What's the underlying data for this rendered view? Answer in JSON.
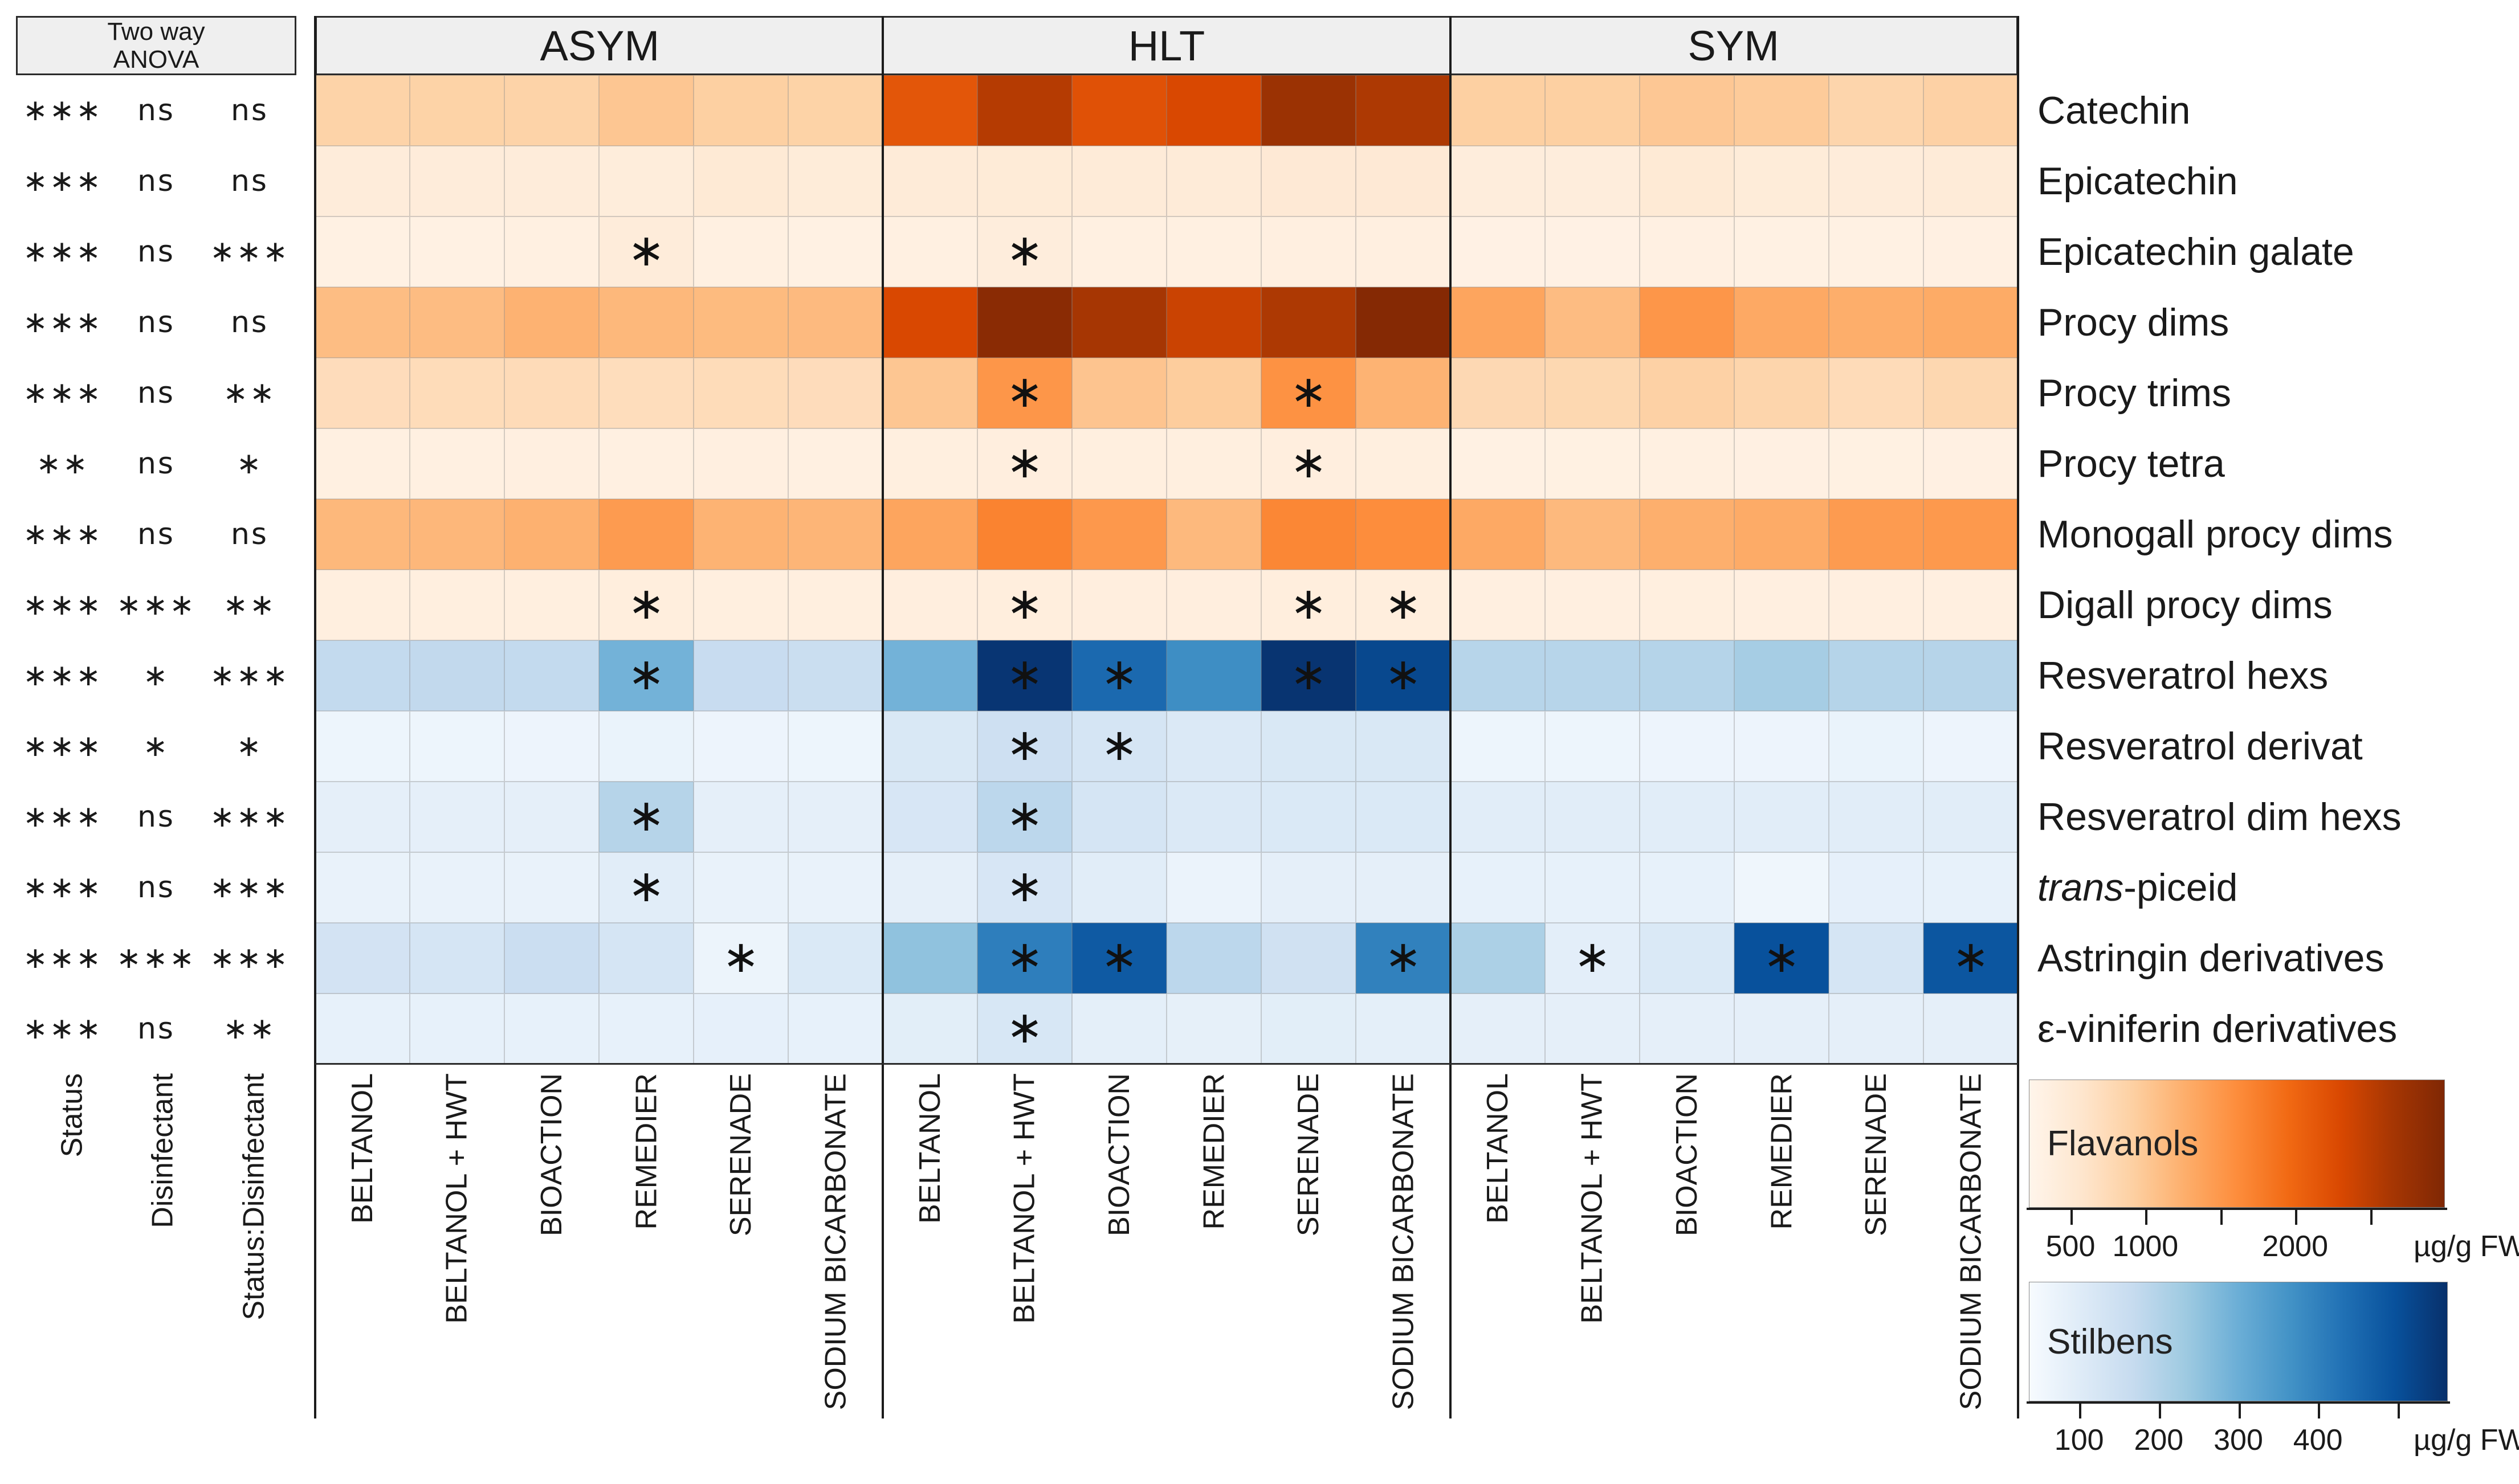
{
  "figure": {
    "anova_header_line1": "Two way",
    "anova_header_line2": "ANOVA",
    "sig_marker": "∗"
  },
  "chart_data": {
    "type": "heatmap",
    "unit": "µg/g FW",
    "groups": [
      "ASYM",
      "HLT",
      "SYM"
    ],
    "treatments": [
      "BELTANOL",
      "BELTANOL + HWT",
      "BIOACTION",
      "REMEDIER",
      "SERENADE",
      "SODIUM BICARBONATE"
    ],
    "anova_factors": [
      "Status",
      "Disinfectant",
      "Status:Disinfectant"
    ],
    "legends": [
      {
        "name": "Flavanols",
        "unit": "µg/g FW",
        "domain": [
          0,
          2800
        ],
        "ticks": [
          500,
          1000,
          1500,
          2000,
          2500
        ],
        "tick_labels": [
          "500",
          "1000",
          "",
          "2000",
          ""
        ],
        "colors": [
          "#fff5eb",
          "#fee6ce",
          "#fdd0a2",
          "#fdae6b",
          "#fd8d3c",
          "#f16913",
          "#d94801",
          "#a63603",
          "#7f2704"
        ]
      },
      {
        "name": "Stilbens",
        "unit": "µg/g FW",
        "domain": [
          0,
          500
        ],
        "ticks": [
          100,
          200,
          300,
          400,
          500
        ],
        "tick_labels": [
          "100",
          "200",
          "300",
          "400",
          ""
        ],
        "colors": [
          "#f7fbff",
          "#deebf7",
          "#c6dbef",
          "#9ecae1",
          "#6baed6",
          "#4292c6",
          "#2171b5",
          "#08519c",
          "#08306b"
        ]
      }
    ],
    "rows": [
      {
        "label": "Catechin",
        "class": "flavanol",
        "anova": [
          "***",
          "ns",
          "ns"
        ],
        "values": {
          "ASYM": [
            650,
            660,
            650,
            800,
            700,
            660
          ],
          "HLT": [
            1950,
            2350,
            2000,
            2100,
            2550,
            2400
          ],
          "SYM": [
            700,
            700,
            790,
            750,
            620,
            680
          ]
        },
        "sig": {
          "ASYM": [
            0,
            0,
            0,
            0,
            0,
            0
          ],
          "HLT": [
            0,
            0,
            0,
            0,
            0,
            0
          ],
          "SYM": [
            0,
            0,
            0,
            0,
            0,
            0
          ]
        }
      },
      {
        "label": "Epicatechin",
        "class": "flavanol",
        "anova": [
          "***",
          "ns",
          "ns"
        ],
        "values": {
          "ASYM": [
            200,
            200,
            205,
            190,
            260,
            215
          ],
          "HLT": [
            235,
            245,
            235,
            235,
            270,
            270
          ],
          "SYM": [
            185,
            185,
            260,
            215,
            200,
            225
          ]
        },
        "sig": {
          "ASYM": [
            0,
            0,
            0,
            0,
            0,
            0
          ],
          "HLT": [
            0,
            0,
            0,
            0,
            0,
            0
          ],
          "SYM": [
            0,
            0,
            0,
            0,
            0,
            0
          ]
        }
      },
      {
        "label": "Epicatechin galate",
        "class": "flavanol",
        "anova": [
          "***",
          "ns",
          "***"
        ],
        "values": {
          "ASYM": [
            100,
            100,
            115,
            205,
            115,
            100
          ],
          "HLT": [
            125,
            185,
            125,
            125,
            135,
            135
          ],
          "SYM": [
            90,
            90,
            110,
            100,
            100,
            110
          ]
        },
        "sig": {
          "ASYM": [
            0,
            0,
            0,
            1,
            0,
            0
          ],
          "HLT": [
            0,
            1,
            0,
            0,
            0,
            0
          ],
          "SYM": [
            0,
            0,
            0,
            0,
            0,
            0
          ]
        }
      },
      {
        "label": "Procy dims",
        "class": "flavanol",
        "anova": [
          "***",
          "ns",
          "ns"
        ],
        "values": {
          "ASYM": [
            900,
            905,
            1005,
            950,
            920,
            925
          ],
          "HLT": [
            2100,
            2700,
            2450,
            2200,
            2400,
            2750
          ],
          "SYM": [
            1150,
            905,
            1300,
            1100,
            1050,
            1085
          ]
        },
        "sig": {
          "ASYM": [
            0,
            0,
            0,
            0,
            0,
            0
          ],
          "HLT": [
            0,
            0,
            0,
            0,
            0,
            0
          ],
          "SYM": [
            0,
            0,
            0,
            0,
            0,
            0
          ]
        }
      },
      {
        "label": "Procy trims",
        "class": "flavanol",
        "anova": [
          "***",
          "ns",
          "**"
        ],
        "values": {
          "ASYM": [
            505,
            515,
            525,
            490,
            515,
            505
          ],
          "HLT": [
            800,
            1300,
            820,
            730,
            1350,
            1000
          ],
          "SYM": [
            565,
            580,
            680,
            620,
            525,
            585
          ]
        },
        "sig": {
          "ASYM": [
            0,
            0,
            0,
            0,
            0,
            0
          ],
          "HLT": [
            0,
            1,
            0,
            0,
            1,
            0
          ],
          "SYM": [
            0,
            0,
            0,
            0,
            0,
            0
          ]
        }
      },
      {
        "label": "Procy tetra",
        "class": "flavanol",
        "anova": [
          "**",
          "ns",
          "*"
        ],
        "values": {
          "ASYM": [
            120,
            120,
            130,
            122,
            130,
            122
          ],
          "HLT": [
            142,
            152,
            142,
            142,
            152,
            142
          ],
          "SYM": [
            100,
            105,
            115,
            110,
            105,
            112
          ]
        },
        "sig": {
          "ASYM": [
            0,
            0,
            0,
            0,
            0,
            0
          ],
          "HLT": [
            0,
            1,
            0,
            0,
            1,
            0
          ],
          "SYM": [
            0,
            0,
            0,
            0,
            0,
            0
          ]
        }
      },
      {
        "label": "Monogall procy dims",
        "class": "flavanol",
        "anova": [
          "***",
          "ns",
          "ns"
        ],
        "values": {
          "ASYM": [
            950,
            955,
            1020,
            1250,
            1000,
            975
          ],
          "HLT": [
            1150,
            1500,
            1280,
            935,
            1460,
            1400
          ],
          "SYM": [
            1100,
            935,
            1040,
            1080,
            1250,
            1270
          ]
        },
        "sig": {
          "ASYM": [
            0,
            0,
            0,
            0,
            0,
            0
          ],
          "HLT": [
            0,
            0,
            0,
            0,
            0,
            0
          ],
          "SYM": [
            0,
            0,
            0,
            0,
            0,
            0
          ]
        }
      },
      {
        "label": "Digall procy dims",
        "class": "flavanol",
        "anova": [
          "***",
          "***",
          "**"
        ],
        "values": {
          "ASYM": [
            140,
            142,
            142,
            165,
            142,
            140
          ],
          "HLT": [
            152,
            175,
            152,
            152,
            175,
            172
          ],
          "SYM": [
            130,
            132,
            140,
            132,
            130,
            132
          ]
        },
        "sig": {
          "ASYM": [
            0,
            0,
            0,
            1,
            0,
            0
          ],
          "HLT": [
            0,
            1,
            0,
            0,
            1,
            1
          ],
          "SYM": [
            0,
            0,
            0,
            0,
            0,
            0
          ]
        }
      },
      {
        "label": "Resveratrol hexs",
        "class": "stilben",
        "anova": [
          "***",
          "*",
          "***"
        ],
        "values": {
          "ASYM": [
            130,
            132,
            130,
            240,
            120,
            115
          ],
          "HLT": [
            240,
            490,
            390,
            320,
            492,
            455
          ],
          "SYM": [
            148,
            148,
            152,
            175,
            152,
            150
          ]
        },
        "sig": {
          "ASYM": [
            0,
            0,
            0,
            1,
            0,
            0
          ],
          "HLT": [
            0,
            1,
            1,
            0,
            1,
            1
          ],
          "SYM": [
            0,
            0,
            0,
            0,
            0,
            0
          ]
        }
      },
      {
        "label": "Resveratrol derivat",
        "class": "stilben",
        "anova": [
          "***",
          "*",
          "*"
        ],
        "values": {
          "ASYM": [
            25,
            25,
            26,
            32,
            26,
            25
          ],
          "HLT": [
            75,
            105,
            85,
            70,
            76,
            76
          ],
          "SYM": [
            25,
            25,
            26,
            26,
            32,
            26
          ]
        },
        "sig": {
          "ASYM": [
            0,
            0,
            0,
            0,
            0,
            0
          ],
          "HLT": [
            0,
            1,
            1,
            0,
            0,
            0
          ],
          "SYM": [
            0,
            0,
            0,
            0,
            0,
            0
          ]
        }
      },
      {
        "label": "Resveratrol dim hexs",
        "class": "stilben",
        "anova": [
          "***",
          "ns",
          "***"
        ],
        "values": {
          "ASYM": [
            45,
            46,
            45,
            150,
            46,
            45
          ],
          "HLT": [
            82,
            140,
            86,
            70,
            72,
            72
          ],
          "SYM": [
            56,
            56,
            56,
            55,
            56,
            56
          ]
        },
        "sig": {
          "ASYM": [
            0,
            0,
            0,
            1,
            0,
            0
          ],
          "HLT": [
            0,
            1,
            0,
            0,
            0,
            0
          ],
          "SYM": [
            0,
            0,
            0,
            0,
            0,
            0
          ]
        }
      },
      {
        "label": "trans-piceid",
        "label_italic": "trans",
        "label_rest": "-piceid",
        "class": "stilben",
        "anova": [
          "***",
          "ns",
          "***"
        ],
        "values": {
          "ASYM": [
            36,
            36,
            36,
            56,
            36,
            36
          ],
          "HLT": [
            46,
            82,
            56,
            30,
            46,
            46
          ],
          "SYM": [
            40,
            40,
            40,
            20,
            42,
            40
          ]
        },
        "sig": {
          "ASYM": [
            0,
            0,
            0,
            1,
            0,
            0
          ],
          "HLT": [
            0,
            1,
            0,
            0,
            0,
            0
          ],
          "SYM": [
            0,
            0,
            0,
            0,
            0,
            0
          ]
        }
      },
      {
        "label": "Astringin derivatives",
        "class": "stilben",
        "anova": [
          "***",
          "***",
          "***"
        ],
        "values": {
          "ASYM": [
            92,
            86,
            112,
            86,
            28,
            72
          ],
          "HLT": [
            205,
            350,
            420,
            140,
            100,
            345
          ],
          "SYM": [
            165,
            50,
            72,
            437,
            86,
            428
          ]
        },
        "sig": {
          "ASYM": [
            0,
            0,
            0,
            0,
            1,
            0
          ],
          "HLT": [
            0,
            1,
            1,
            0,
            0,
            1
          ],
          "SYM": [
            0,
            1,
            0,
            1,
            0,
            1
          ]
        }
      },
      {
        "label": "ε-viniferin derivatives",
        "class": "stilben",
        "anova": [
          "***",
          "ns",
          "**"
        ],
        "values": {
          "ASYM": [
            40,
            40,
            41,
            40,
            42,
            40
          ],
          "HLT": [
            52,
            80,
            47,
            43,
            52,
            47
          ],
          "SYM": [
            46,
            45,
            46,
            45,
            46,
            46
          ]
        },
        "sig": {
          "ASYM": [
            0,
            0,
            0,
            0,
            0,
            0
          ],
          "HLT": [
            0,
            1,
            0,
            0,
            0,
            0
          ],
          "SYM": [
            0,
            0,
            0,
            0,
            0,
            0
          ]
        }
      }
    ]
  }
}
